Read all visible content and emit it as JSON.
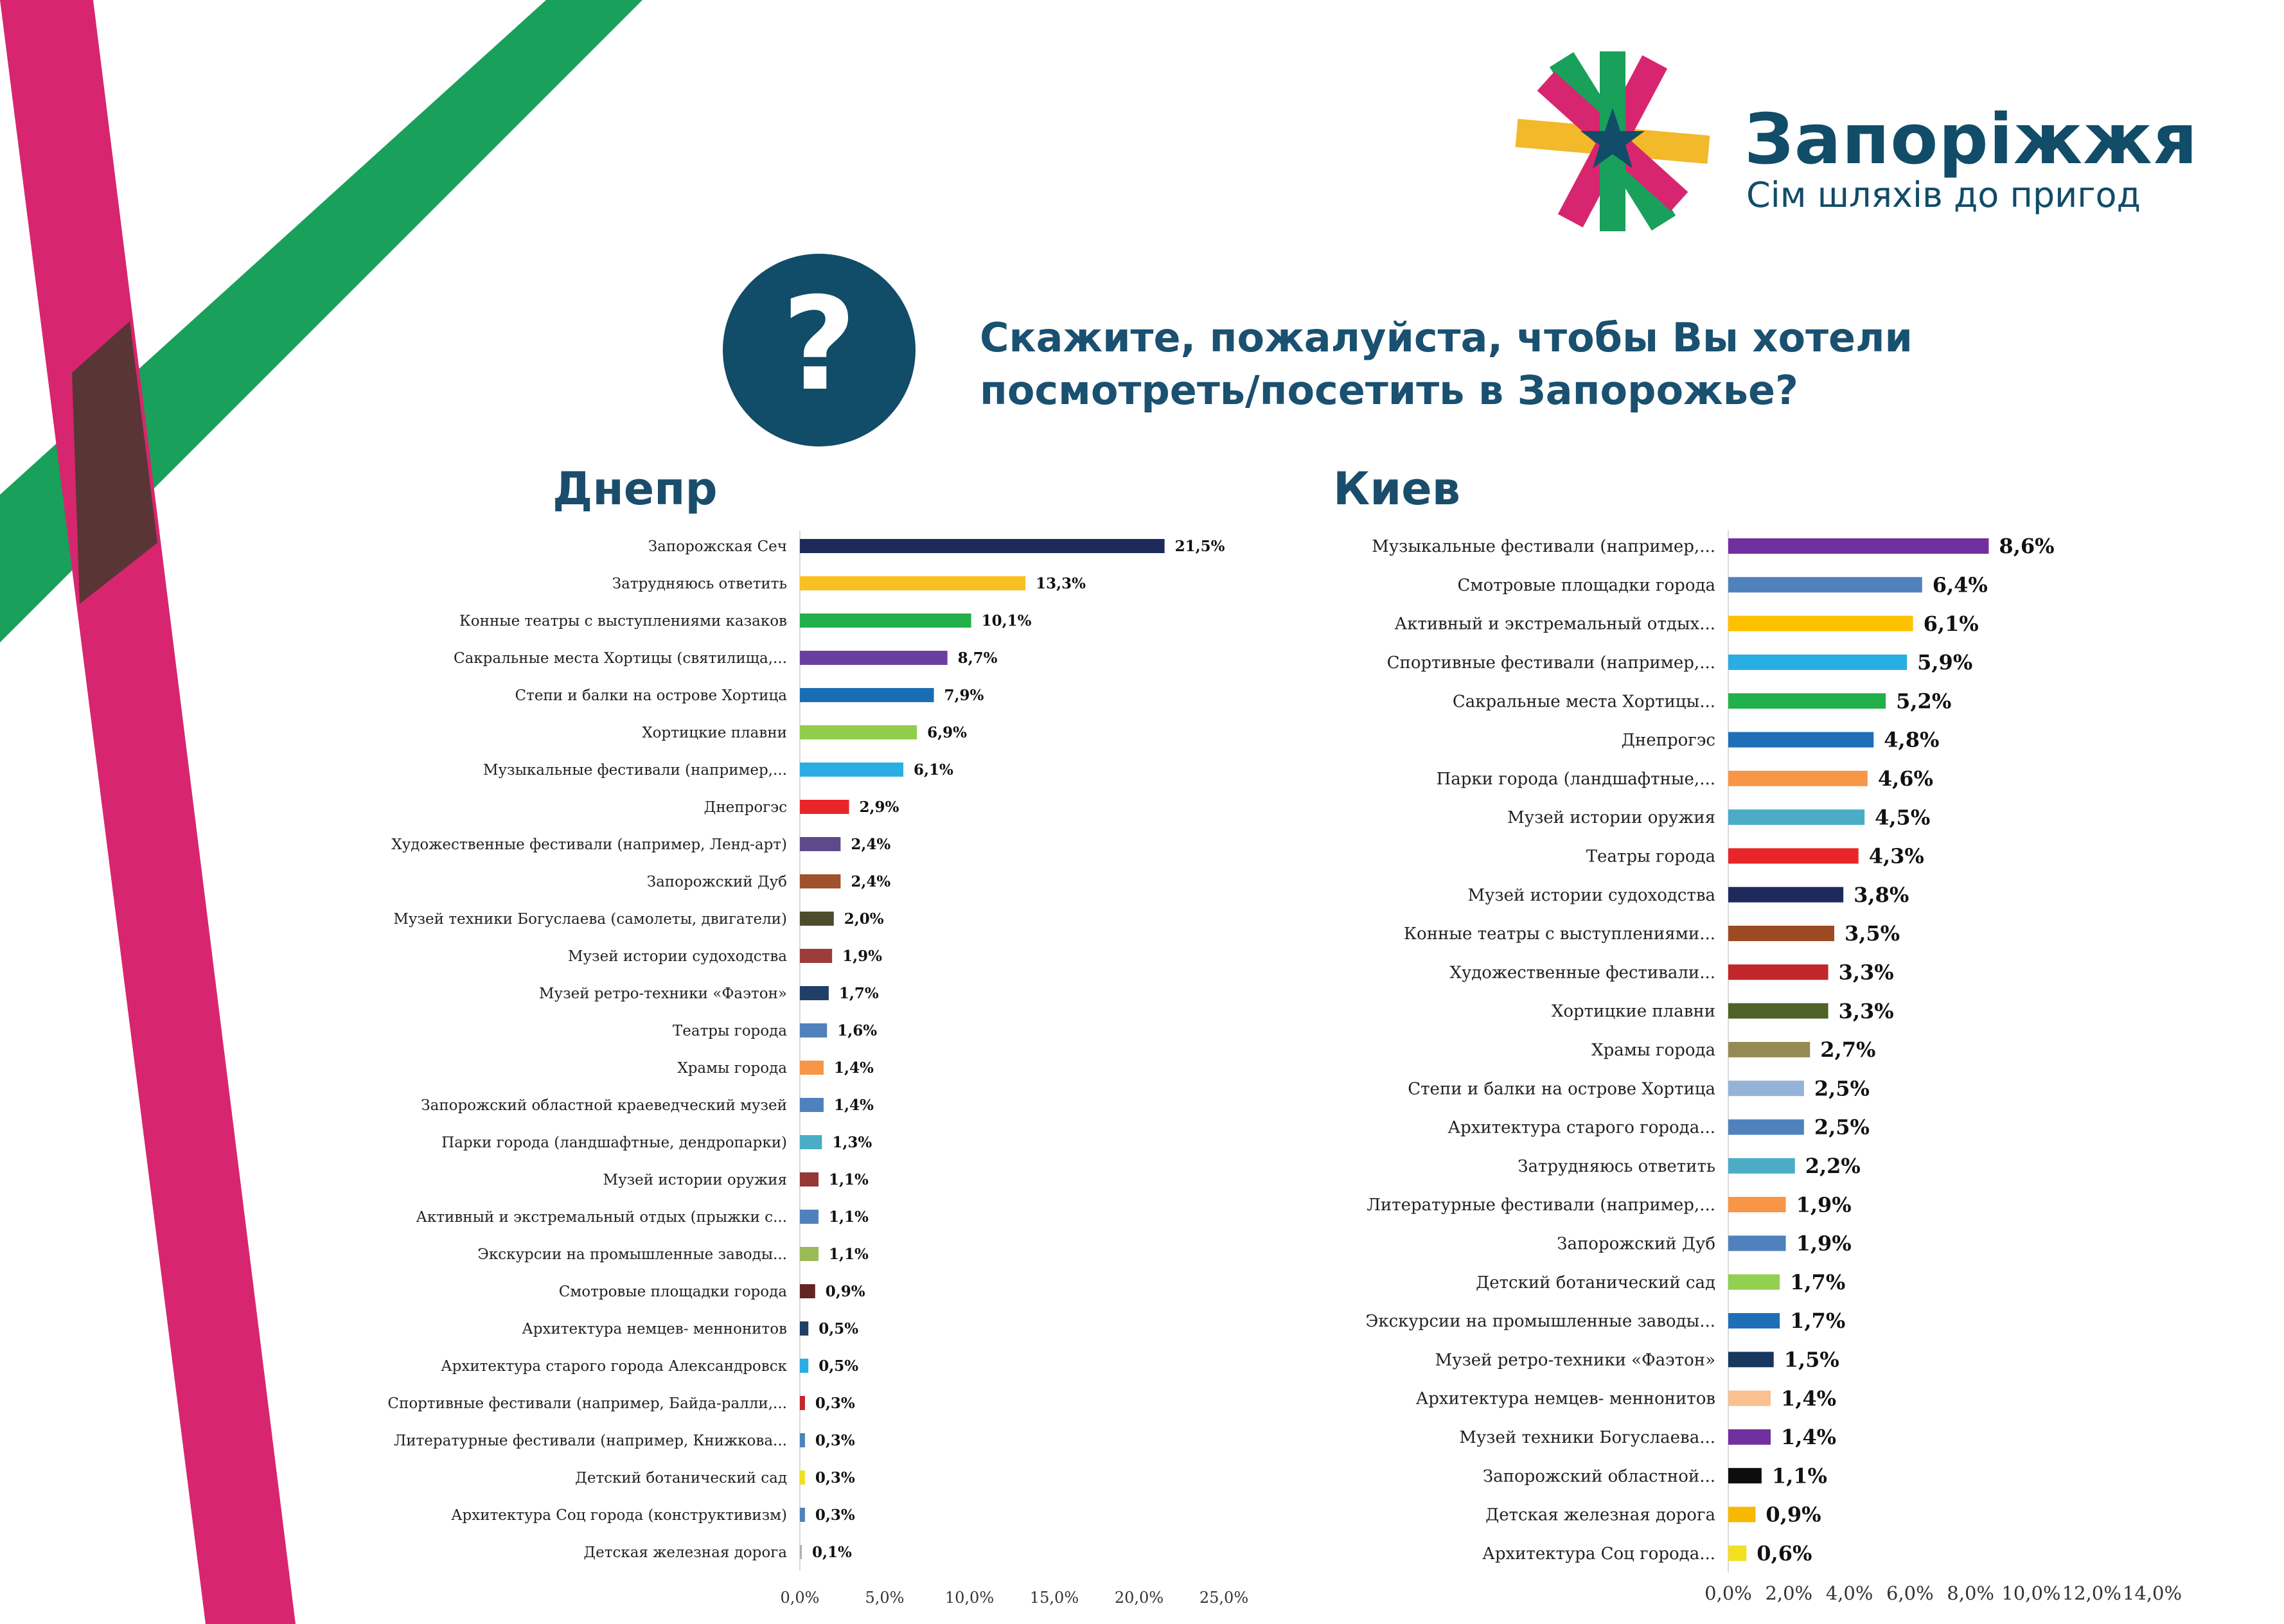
{
  "brand": {
    "name": "Запоріжжя",
    "tagline": "Сім шляхів до пригод"
  },
  "question": {
    "line1": "Скажите, пожалуйста, чтобы Вы хотели",
    "line2": "посмотреть/посетить в Запорожье?"
  },
  "colors": {
    "magenta": "#d8256f",
    "green": "#19a05a",
    "yellow": "#f2b92b",
    "navy": "#114c68",
    "overlap": "#5a3535"
  },
  "chart_data": [
    {
      "type": "bar",
      "orientation": "horizontal",
      "title": "Днепр",
      "xlim": [
        0,
        25
      ],
      "ticks": [
        "0,0%",
        "5,0%",
        "10,0%",
        "15,0%",
        "20,0%",
        "25,0%"
      ],
      "categories": [
        "Запорожская Сеч",
        "Затрудняюсь ответить",
        "Конные театры с выступлениями казаков",
        "Сакральные места Хортицы (святилища,...",
        "Степи и балки на острове Хортица",
        "Хортицкие плавни",
        "Музыкальные фестивали (например,...",
        "Днепрогэс",
        "Художественные фестивали (например, Ленд-арт)",
        "Запорожский Дуб",
        "Музей техники Богуслаева (самолеты, двигатели)",
        "Музей истории судоходства",
        "Музей ретро-техники «Фаэтон»",
        "Театры города",
        "Храмы города",
        "Запорожский областной краеведческий музей",
        "Парки города (ландшафтные, дендропарки)",
        "Музей истории оружия",
        "Активный и экстремальный отдых (прыжки с...",
        "Экскурсии на промышленные заводы...",
        "Смотровые площадки города",
        "Архитектура немцев- меннонитов",
        "Архитектура старого города Александровск",
        "Спортивные фестивали (например, Байда-ралли,...",
        "Литературные фестивали (например, Книжкова...",
        "Детский ботанический сад",
        "Архитектура Соц города (конструктивизм)",
        "Детская железная дорога"
      ],
      "values": [
        21.5,
        13.3,
        10.1,
        8.7,
        7.9,
        6.9,
        6.1,
        2.9,
        2.4,
        2.4,
        2.0,
        1.9,
        1.7,
        1.6,
        1.4,
        1.4,
        1.3,
        1.1,
        1.1,
        1.1,
        0.9,
        0.5,
        0.5,
        0.3,
        0.3,
        0.3,
        0.3,
        0.1
      ],
      "labels": [
        "21,5%",
        "13,3%",
        "10,1%",
        "8,7%",
        "7,9%",
        "6,9%",
        "6,1%",
        "2,9%",
        "2,4%",
        "2,4%",
        "2,0%",
        "1,9%",
        "1,7%",
        "1,6%",
        "1,4%",
        "1,4%",
        "1,3%",
        "1,1%",
        "1,1%",
        "1,1%",
        "0,9%",
        "0,5%",
        "0,5%",
        "0,3%",
        "0,3%",
        "0,3%",
        "0,3%",
        "0,1%"
      ],
      "colors": [
        "#1f2a5c",
        "#f8c020",
        "#22b04b",
        "#6b3fa0",
        "#1b6db3",
        "#92cc4c",
        "#29aee3",
        "#e8262a",
        "#5e4a8a",
        "#a0522d",
        "#4d4d2c",
        "#9e3c3c",
        "#1f3f66",
        "#4f81bd",
        "#f79646",
        "#4f81bd",
        "#4bacc6",
        "#953735",
        "#4f81bd",
        "#9bbb59",
        "#632523",
        "#1f3f66",
        "#29aee3",
        "#c0262a",
        "#4f81bd",
        "#f0e020",
        "#4f81bd",
        "#b0b0b0"
      ]
    },
    {
      "type": "bar",
      "orientation": "horizontal",
      "title": "Киев",
      "xlim": [
        0,
        14
      ],
      "ticks": [
        "0,0%",
        "2,0%",
        "4,0%",
        "6,0%",
        "8,0%",
        "10,0%",
        "12,0%",
        "14,0%"
      ],
      "categories": [
        "Музыкальные фестивали (например,...",
        "Смотровые площадки города",
        "Активный и экстремальный отдых...",
        "Спортивные фестивали (например,...",
        "Сакральные места Хортицы...",
        "Днепрогэс",
        "Парки города (ландшафтные,...",
        "Музей истории оружия",
        "Театры города",
        "Музей истории судоходства",
        "Конные театры с выступлениями...",
        "Художественные фестивали...",
        "Хортицкие плавни",
        "Храмы города",
        "Степи и балки на острове Хортица",
        "Архитектура старого города...",
        "Затрудняюсь ответить",
        "Литературные фестивали (например,...",
        "Запорожский Дуб",
        "Детский ботанический сад",
        "Экскурсии на промышленные заводы...",
        "Музей ретро-техники «Фаэтон»",
        "Архитектура немцев- меннонитов",
        "Музей техники Богуслаева...",
        "Запорожский областной...",
        "Детская железная дорога",
        "Архитектура Соц города..."
      ],
      "values": [
        8.6,
        6.4,
        6.1,
        5.9,
        5.2,
        4.8,
        4.6,
        4.5,
        4.3,
        3.8,
        3.5,
        3.3,
        3.3,
        2.7,
        2.5,
        2.5,
        2.2,
        1.9,
        1.9,
        1.7,
        1.7,
        1.5,
        1.4,
        1.4,
        1.1,
        0.9,
        0.6
      ],
      "labels": [
        "8,6%",
        "6,4%",
        "6,1%",
        "5,9%",
        "5,2%",
        "4,8%",
        "4,6%",
        "4,5%",
        "4,3%",
        "3,8%",
        "3,5%",
        "3,3%",
        "3,3%",
        "2,7%",
        "2,5%",
        "2,5%",
        "2,2%",
        "1,9%",
        "1,9%",
        "1,7%",
        "1,7%",
        "1,5%",
        "1,4%",
        "1,4%",
        "1,1%",
        "0,9%",
        "0,6%"
      ],
      "colors": [
        "#7030a0",
        "#4f81bd",
        "#ffc000",
        "#29aee3",
        "#22b04b",
        "#1f6fb8",
        "#f79646",
        "#4bacc6",
        "#e8262a",
        "#1f2a5c",
        "#9c4a22",
        "#c0262a",
        "#4f6228",
        "#948a54",
        "#95b3d7",
        "#4f81bd",
        "#4bacc6",
        "#f79646",
        "#4f81bd",
        "#92d050",
        "#1f6fb8",
        "#17375e",
        "#fac090",
        "#7030a0",
        "#0d0d0d",
        "#f8b800",
        "#f0e020"
      ]
    }
  ]
}
